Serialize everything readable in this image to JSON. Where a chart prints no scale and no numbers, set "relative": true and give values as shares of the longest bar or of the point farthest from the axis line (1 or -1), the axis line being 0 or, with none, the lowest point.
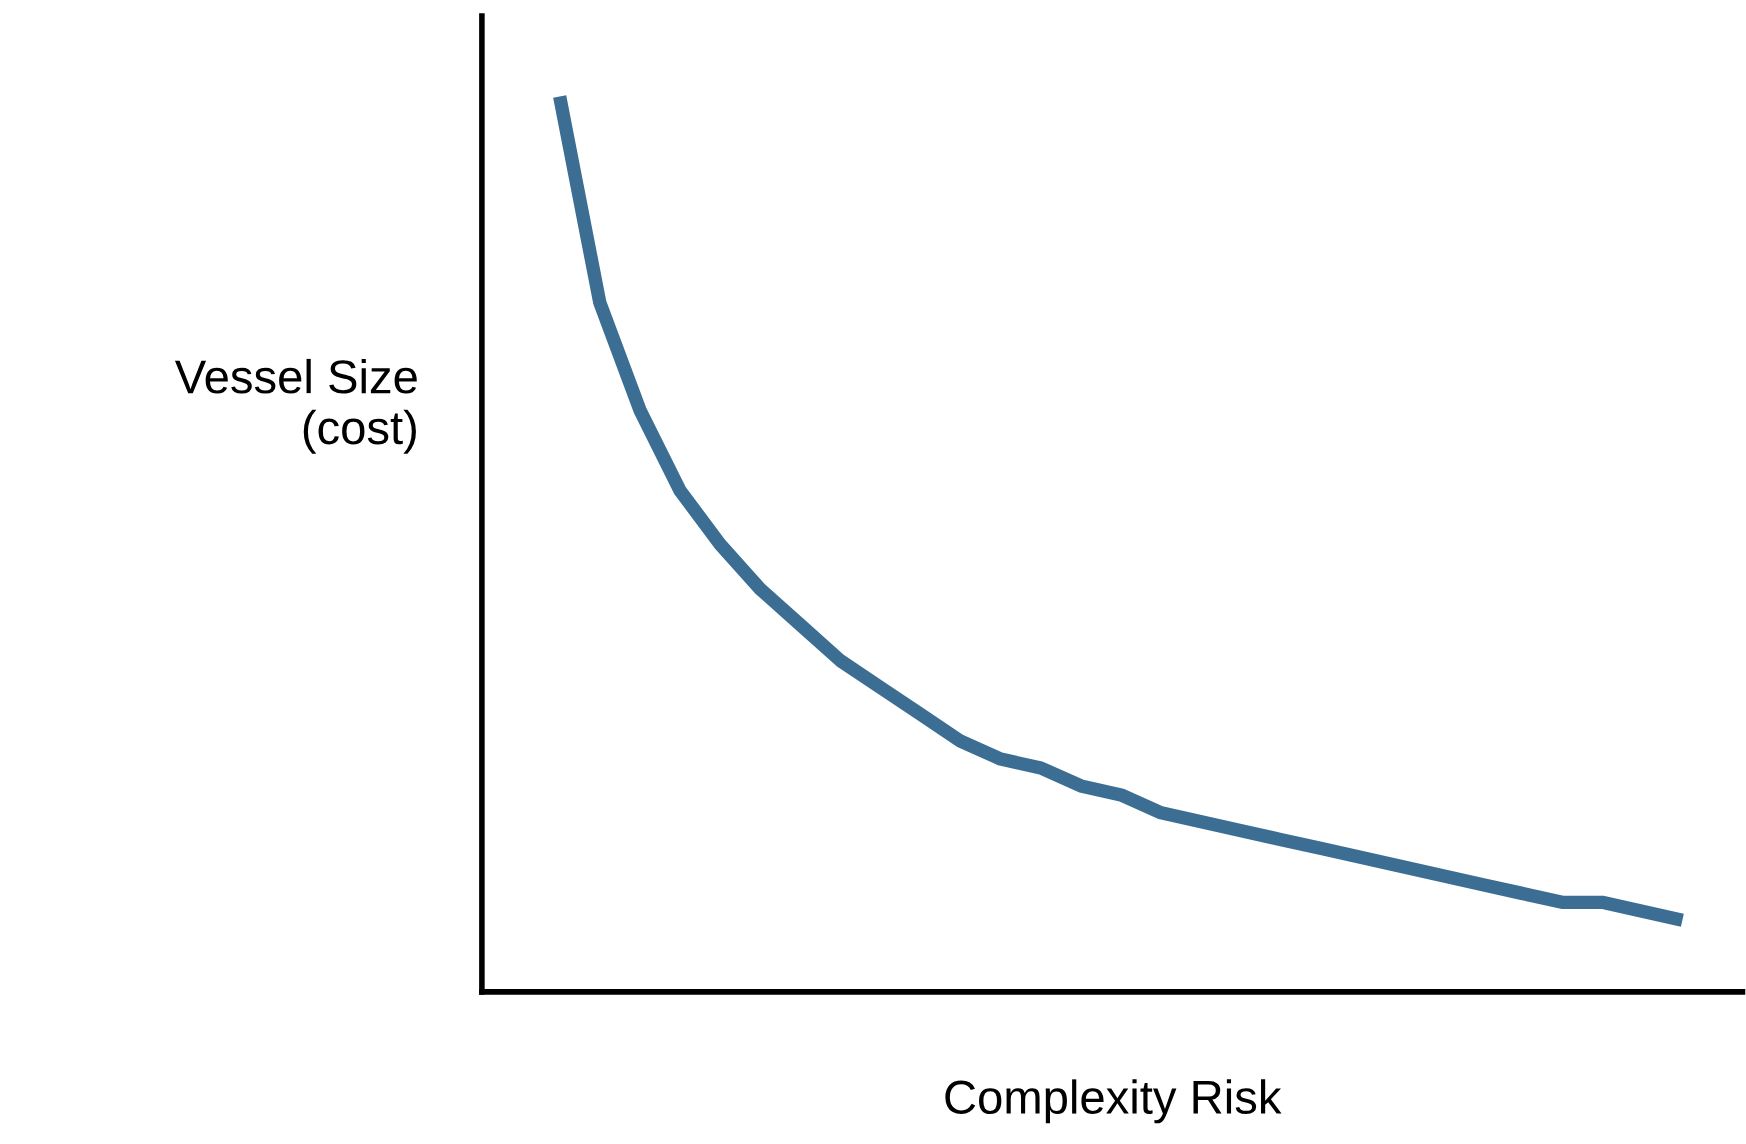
{
  "chart_data": {
    "type": "line",
    "relative": true,
    "xlabel": "Complexity Risk",
    "ylabel": "Vessel Size\n(cost)",
    "categories": [
      null,
      null,
      null,
      null,
      null,
      null,
      null,
      null,
      null,
      null,
      null,
      null,
      null,
      null,
      null,
      null,
      null,
      null,
      null,
      null,
      null,
      null,
      null,
      null,
      null,
      null,
      null,
      null,
      null
    ],
    "series": [
      {
        "color": "#3b6e92",
        "values": [
          1,
          0.77,
          0.65,
          0.56,
          0.5,
          0.45,
          0.41,
          0.37,
          0.34,
          0.31,
          0.28,
          0.26,
          0.25,
          0.23,
          0.22,
          0.2,
          0.19,
          0.18,
          0.17,
          0.16,
          0.15,
          0.14,
          0.13,
          0.12,
          0.11,
          0.1,
          0.1,
          0.09,
          0.08
        ]
      }
    ],
    "grid": false,
    "legend": false,
    "marker": "none",
    "line_style": "solid"
  }
}
